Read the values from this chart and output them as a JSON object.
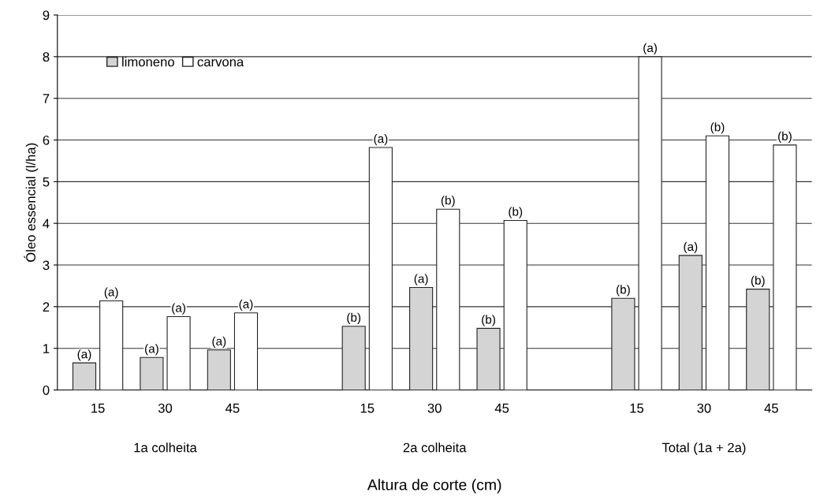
{
  "chart_data": {
    "type": "bar",
    "xlabel": "Altura de corte (cm)",
    "ylabel": "Óleo essencial (l/ha)",
    "categories": [
      "15",
      "30",
      "45",
      null,
      "15",
      "30",
      "45",
      null,
      "15",
      "30",
      "45"
    ],
    "series": [
      {
        "name": "limoneno",
        "color": "#d4d4d4",
        "values": [
          0.65,
          0.78,
          0.96,
          null,
          1.53,
          2.46,
          1.48,
          null,
          2.2,
          3.23,
          2.42
        ],
        "value_labels": [
          "(a)",
          "(a)",
          "(a)",
          null,
          "(b)",
          "(a)",
          "(b)",
          null,
          "(b)",
          "(a)",
          "(b)"
        ]
      },
      {
        "name": "carvona",
        "color": "#ffffff",
        "values": [
          2.14,
          1.76,
          1.85,
          null,
          5.82,
          4.34,
          4.07,
          null,
          8.0,
          6.1,
          5.88
        ],
        "value_labels": [
          "(a)",
          "(a)",
          "(a)",
          null,
          "(a)",
          "(b)",
          "(b)",
          null,
          "(a)",
          "(b)",
          "(b)"
        ]
      }
    ],
    "annotations": [
      "1a colheita",
      "2a colheita",
      "Total (1a + 2a)"
    ],
    "ylim": [
      0,
      9
    ],
    "yticks": [
      0,
      1,
      2,
      3,
      4,
      5,
      6,
      7,
      8,
      9
    ],
    "grid": "y",
    "legend": "top left"
  }
}
